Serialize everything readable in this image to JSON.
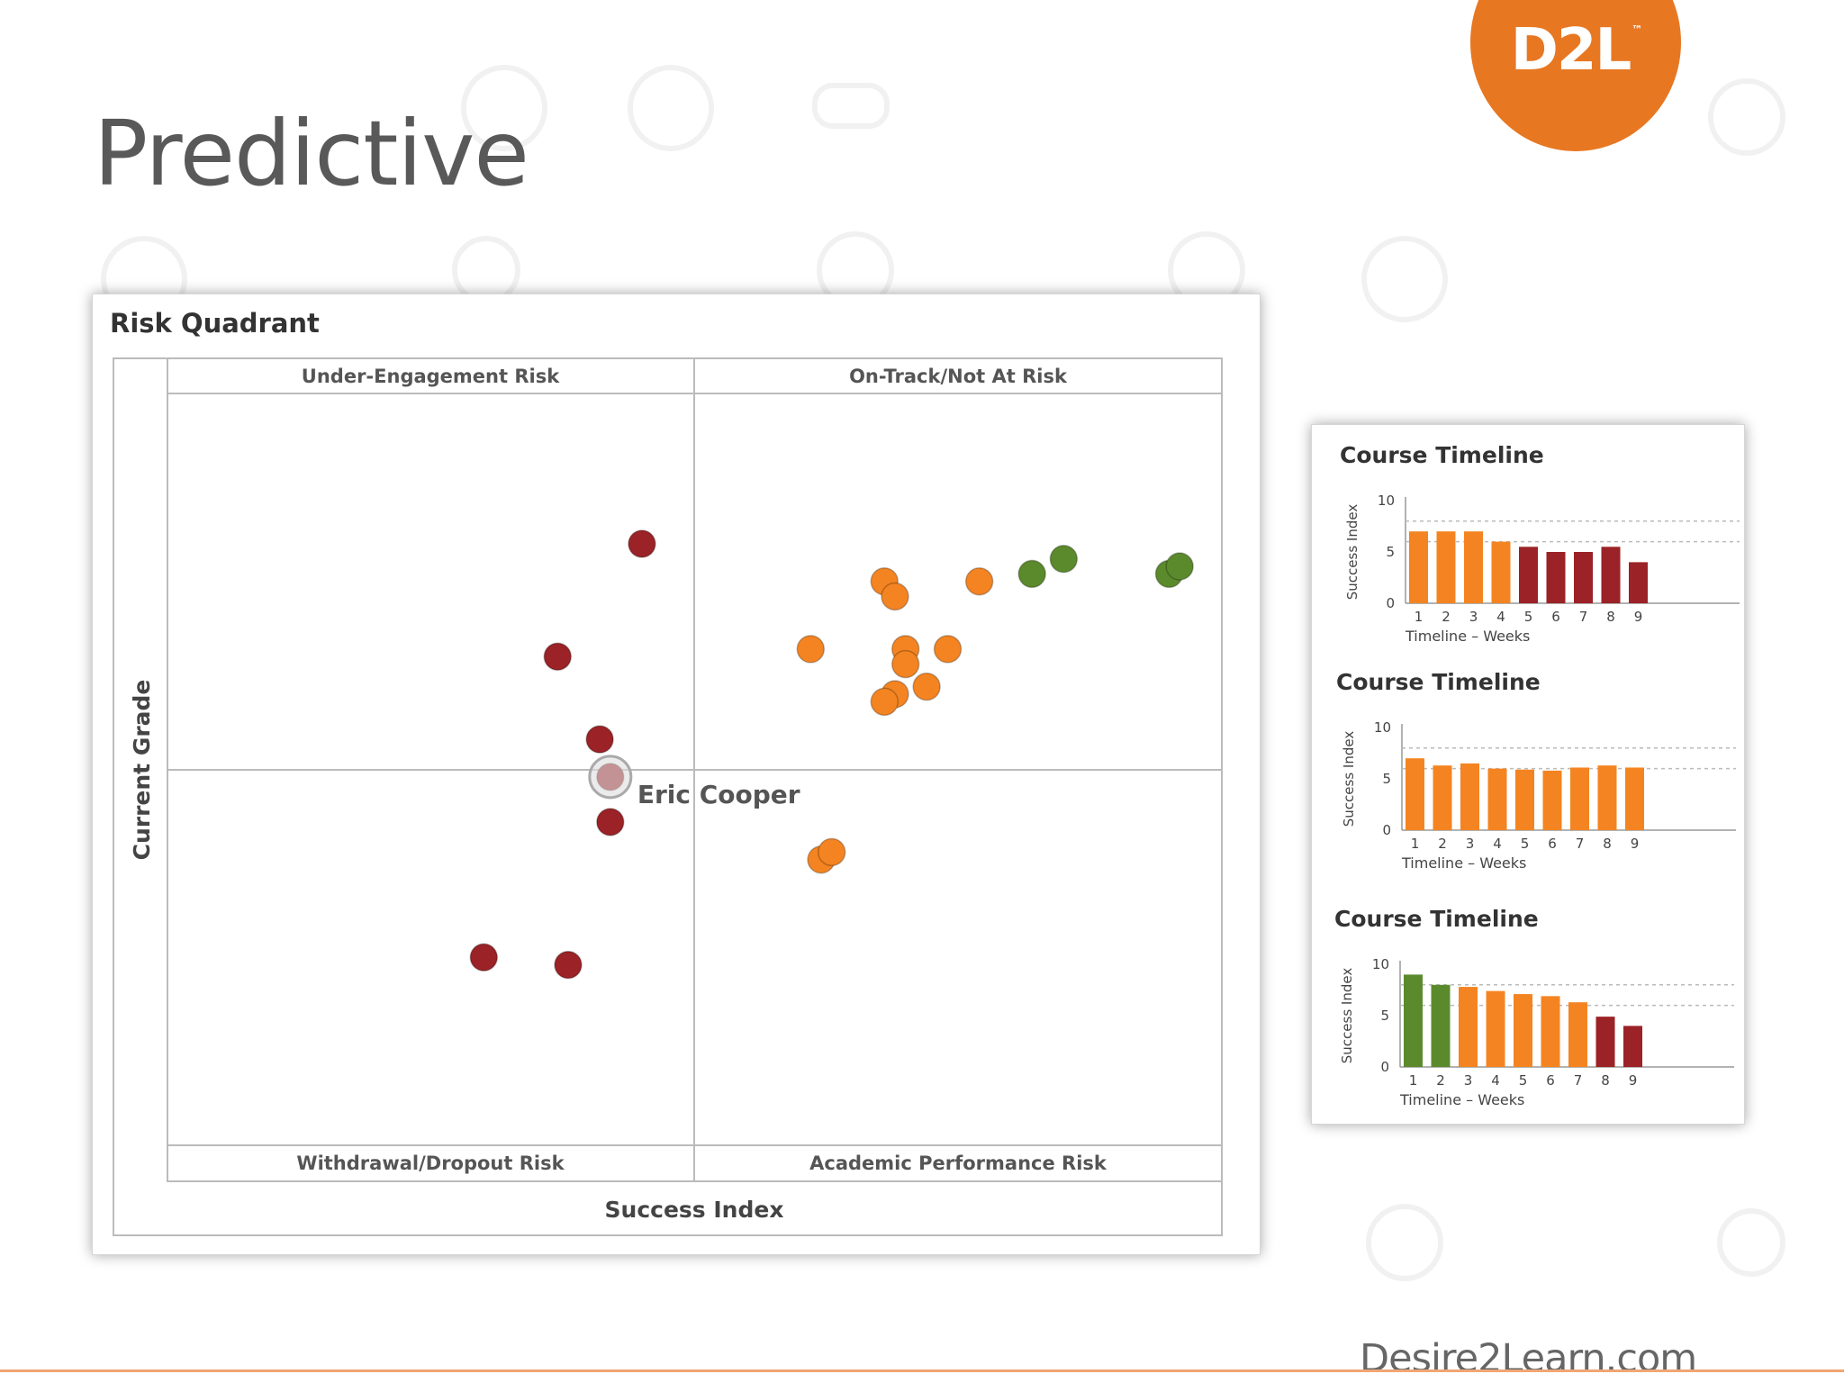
{
  "slide": {
    "title": "Predictive",
    "logo_text": "D2L",
    "logo_mark": "™",
    "footer": "Desire2Learn.com",
    "accent_color": "#e87722"
  },
  "colors": {
    "red": "#9b2226",
    "orange": "#f48421",
    "green": "#5b8a2c"
  },
  "chart_data": [
    {
      "type": "scatter",
      "title": "Risk Quadrant",
      "xlabel": "Success Index",
      "ylabel": "Current Grade",
      "xlim": [
        0,
        100
      ],
      "ylim": [
        0,
        100
      ],
      "quadrants": {
        "top_left": "Under-Engagement Risk",
        "top_right": "On-Track/Not At Risk",
        "bottom_left": "Withdrawal/Dropout Risk",
        "bottom_right": "Academic Performance Risk"
      },
      "highlight": {
        "name": "Eric Cooper",
        "x": 42,
        "y": 49
      },
      "points": [
        {
          "x": 45,
          "y": 80,
          "status": "red"
        },
        {
          "x": 37,
          "y": 65,
          "status": "red"
        },
        {
          "x": 41,
          "y": 54,
          "status": "red"
        },
        {
          "x": 42,
          "y": 49,
          "status": "red"
        },
        {
          "x": 42,
          "y": 43,
          "status": "red"
        },
        {
          "x": 30,
          "y": 25,
          "status": "red"
        },
        {
          "x": 38,
          "y": 24,
          "status": "red"
        },
        {
          "x": 61,
          "y": 66,
          "status": "orange"
        },
        {
          "x": 68,
          "y": 75,
          "status": "orange"
        },
        {
          "x": 69,
          "y": 73,
          "status": "orange"
        },
        {
          "x": 77,
          "y": 75,
          "status": "orange"
        },
        {
          "x": 70,
          "y": 66,
          "status": "orange"
        },
        {
          "x": 70,
          "y": 64,
          "status": "orange"
        },
        {
          "x": 74,
          "y": 66,
          "status": "orange"
        },
        {
          "x": 72,
          "y": 61,
          "status": "orange"
        },
        {
          "x": 69,
          "y": 60,
          "status": "orange"
        },
        {
          "x": 68,
          "y": 59,
          "status": "orange"
        },
        {
          "x": 62,
          "y": 38,
          "status": "orange"
        },
        {
          "x": 63,
          "y": 39,
          "status": "orange"
        },
        {
          "x": 82,
          "y": 76,
          "status": "green"
        },
        {
          "x": 85,
          "y": 78,
          "status": "green"
        },
        {
          "x": 95,
          "y": 76,
          "status": "green"
        },
        {
          "x": 96,
          "y": 77,
          "status": "green"
        }
      ]
    },
    {
      "type": "bar",
      "title": "Course Timeline",
      "xlabel": "Timeline – Weeks",
      "ylabel": "Success Index",
      "ylim": [
        0,
        10
      ],
      "yticks": [
        0,
        5,
        10
      ],
      "reference_lines": [
        8,
        6
      ],
      "categories": [
        "1",
        "2",
        "3",
        "4",
        "5",
        "6",
        "7",
        "8",
        "9"
      ],
      "values": [
        7,
        7,
        7,
        6,
        5.5,
        5,
        5,
        5.5,
        4
      ],
      "statuses": [
        "orange",
        "orange",
        "orange",
        "orange",
        "red",
        "red",
        "red",
        "red",
        "red"
      ]
    },
    {
      "type": "bar",
      "title": "Course Timeline",
      "xlabel": "Timeline – Weeks",
      "ylabel": "Success Index",
      "ylim": [
        0,
        10
      ],
      "yticks": [
        0,
        5,
        10
      ],
      "reference_lines": [
        8,
        6
      ],
      "categories": [
        "1",
        "2",
        "3",
        "4",
        "5",
        "6",
        "7",
        "8",
        "9"
      ],
      "values": [
        7,
        6.3,
        6.5,
        6,
        5.9,
        5.8,
        6.1,
        6.3,
        6.1
      ],
      "statuses": [
        "orange",
        "orange",
        "orange",
        "orange",
        "orange",
        "orange",
        "orange",
        "orange",
        "orange"
      ]
    },
    {
      "type": "bar",
      "title": "Course Timeline",
      "xlabel": "Timeline – Weeks",
      "ylabel": "Success Index",
      "ylim": [
        0,
        10
      ],
      "yticks": [
        0,
        5,
        10
      ],
      "reference_lines": [
        8,
        6
      ],
      "categories": [
        "1",
        "2",
        "3",
        "4",
        "5",
        "6",
        "7",
        "8",
        "9"
      ],
      "values": [
        9,
        8,
        7.8,
        7.4,
        7.1,
        6.9,
        6.3,
        4.9,
        4
      ],
      "statuses": [
        "green",
        "green",
        "orange",
        "orange",
        "orange",
        "orange",
        "orange",
        "red",
        "red"
      ]
    }
  ]
}
